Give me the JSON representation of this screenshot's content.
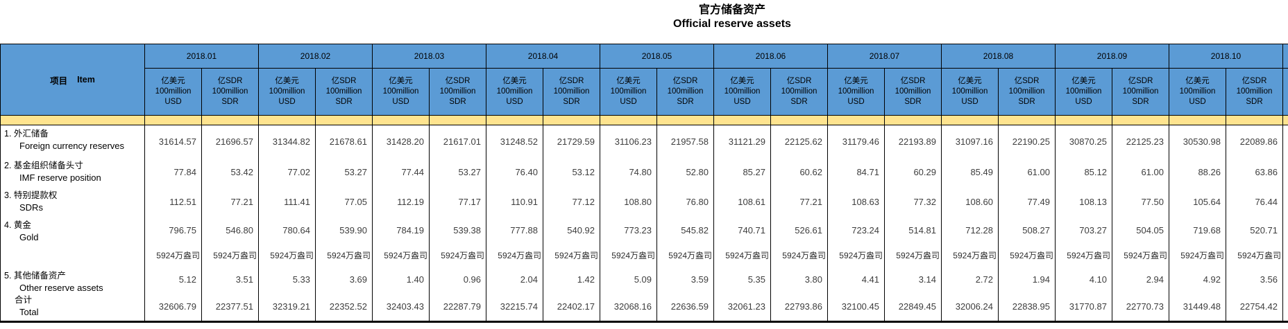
{
  "title": {
    "zh": "官方储备资产",
    "en": "Official reserve assets"
  },
  "colors": {
    "header_blue": "#5B9BD5",
    "band_yellow": "#FFE48F"
  },
  "table": {
    "item_label_zh": "项目",
    "item_label_en": "Item",
    "months": [
      "2018.01",
      "2018.02",
      "2018.03",
      "2018.04",
      "2018.05",
      "2018.06",
      "2018.07",
      "2018.08",
      "2018.09",
      "2018.10"
    ],
    "unit_usd": [
      "亿美元",
      "100million",
      "USD"
    ],
    "unit_sdr": [
      "亿SDR",
      "100million",
      "SDR"
    ],
    "rows": [
      {
        "id": "foreign-currency-reserves",
        "label_zh": "1. 外汇储备",
        "label_en": "Foreign currency reserves",
        "cells": [
          "31614.57",
          "21696.57",
          "31344.82",
          "21678.61",
          "31428.20",
          "21617.01",
          "31248.52",
          "21729.59",
          "31106.23",
          "21957.58",
          "31121.29",
          "22125.62",
          "31179.46",
          "22193.89",
          "31097.16",
          "22190.25",
          "30870.25",
          "22125.23",
          "30530.98",
          "22089.86"
        ]
      },
      {
        "id": "imf-reserve-position",
        "label_zh": "2. 基金组织储备头寸",
        "label_en": "IMF reserve position",
        "cells": [
          "77.84",
          "53.42",
          "77.02",
          "53.27",
          "77.44",
          "53.27",
          "76.40",
          "53.12",
          "74.80",
          "52.80",
          "85.27",
          "60.62",
          "84.71",
          "60.29",
          "85.49",
          "61.00",
          "85.12",
          "61.00",
          "88.26",
          "63.86"
        ]
      },
      {
        "id": "sdrs",
        "label_zh": "3. 特别提款权",
        "label_en": "SDRs",
        "cells": [
          "112.51",
          "77.21",
          "111.41",
          "77.05",
          "112.19",
          "77.17",
          "110.91",
          "77.12",
          "108.80",
          "76.80",
          "108.61",
          "77.21",
          "108.63",
          "77.32",
          "108.60",
          "77.49",
          "108.13",
          "77.50",
          "105.64",
          "76.44"
        ]
      },
      {
        "id": "gold",
        "label_zh": "4. 黄金",
        "label_en": "Gold",
        "cells": [
          "796.75",
          "546.80",
          "780.64",
          "539.90",
          "784.19",
          "539.38",
          "777.88",
          "540.92",
          "773.23",
          "545.82",
          "740.71",
          "526.61",
          "723.24",
          "514.81",
          "712.28",
          "508.27",
          "703.27",
          "504.05",
          "719.68",
          "520.71"
        ]
      },
      {
        "id": "gold-ounces",
        "label_zh": "",
        "label_en": "",
        "ounces": true,
        "cells": [
          "5924万盎司",
          "5924万盎司",
          "5924万盎司",
          "5924万盎司",
          "5924万盎司",
          "5924万盎司",
          "5924万盎司",
          "5924万盎司",
          "5924万盎司",
          "5924万盎司",
          "5924万盎司",
          "5924万盎司",
          "5924万盎司",
          "5924万盎司",
          "5924万盎司",
          "5924万盎司",
          "5924万盎司",
          "5924万盎司",
          "5924万盎司",
          "5924万盎司"
        ]
      },
      {
        "id": "other-reserve-assets",
        "label_zh": "5. 其他储备资产",
        "label_en": "Other reserve assets",
        "cells": [
          "5.12",
          "3.51",
          "5.33",
          "3.69",
          "1.40",
          "0.96",
          "2.04",
          "1.42",
          "5.09",
          "3.59",
          "5.35",
          "3.80",
          "4.41",
          "3.14",
          "2.72",
          "1.94",
          "4.10",
          "2.94",
          "4.92",
          "3.56"
        ]
      },
      {
        "id": "total",
        "label_zh": "合计",
        "label_en": "Total",
        "cells": [
          "32606.79",
          "22377.51",
          "32319.21",
          "22352.52",
          "32403.43",
          "22287.79",
          "32215.74",
          "22402.17",
          "32068.16",
          "22636.59",
          "32061.23",
          "22793.86",
          "32100.45",
          "22849.45",
          "32006.24",
          "22838.95",
          "31770.87",
          "22770.73",
          "31449.48",
          "22754.42"
        ]
      }
    ]
  }
}
